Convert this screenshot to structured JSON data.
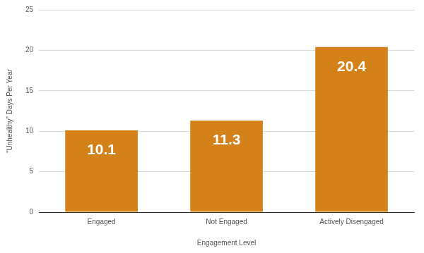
{
  "chart_data": {
    "type": "bar",
    "categories": [
      "Engaged",
      "Not Engaged",
      "Actively Disengaged"
    ],
    "values": [
      10.1,
      11.3,
      20.4
    ],
    "color": "#d5811a",
    "x_label": "Engagement Level",
    "y_label": "“Unhealthy” Days Per Year",
    "ylim": [
      0,
      25
    ],
    "yticks": [
      0,
      5,
      10,
      15,
      20,
      25
    ],
    "grid": true,
    "data_labels": true
  }
}
